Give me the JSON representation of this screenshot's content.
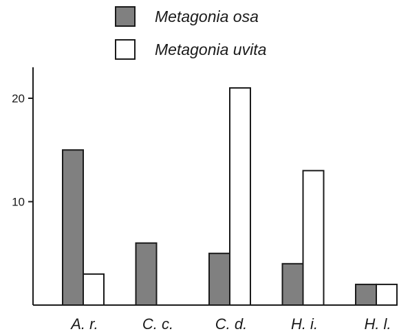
{
  "chart_data": {
    "type": "bar",
    "categories": [
      "A. r.",
      "C. c.",
      "C. d.",
      "H. i.",
      "H. l."
    ],
    "series": [
      {
        "name": "Metagonia osa",
        "values": [
          15,
          6,
          5,
          4,
          2
        ],
        "color": "#808080"
      },
      {
        "name": "Metagonia uvita",
        "values": [
          3,
          0,
          21,
          13,
          2
        ],
        "color": "#ffffff"
      }
    ],
    "title": "",
    "xlabel": "",
    "ylabel": "",
    "ylim": [
      0,
      23
    ],
    "yticks": [
      10,
      20
    ],
    "grid": false,
    "legend_position": "top"
  }
}
